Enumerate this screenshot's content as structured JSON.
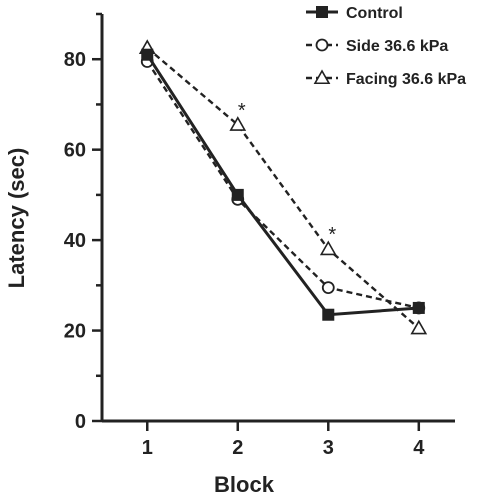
{
  "chart_data": {
    "type": "line",
    "x": [
      1,
      2,
      3,
      4
    ],
    "xlabel": "Block",
    "ylabel": "Latency (sec)",
    "xticks": [
      "1",
      "2",
      "3",
      "4"
    ],
    "yticks": [
      "0",
      "20",
      "40",
      "60",
      "80"
    ],
    "ylim": [
      0,
      90
    ],
    "xlim": [
      0.5,
      4.4
    ],
    "legend_position": "top-right",
    "series": [
      {
        "name": "Control",
        "marker": "square-filled",
        "line": "solid",
        "values": [
          81,
          50,
          23.5,
          25
        ]
      },
      {
        "name": "Side 36.6 kPa",
        "marker": "circle-open",
        "line": "dashed",
        "values": [
          79.5,
          49,
          29.5,
          25
        ]
      },
      {
        "name": "Facing 36.6 kPa",
        "marker": "triangle-open",
        "line": "dashed",
        "values": [
          82.5,
          65.5,
          38,
          20.5
        ]
      }
    ],
    "annotations": [
      {
        "text": "*",
        "x": 2,
        "y": 65.5
      },
      {
        "text": "*",
        "x": 3,
        "y": 38
      }
    ]
  }
}
